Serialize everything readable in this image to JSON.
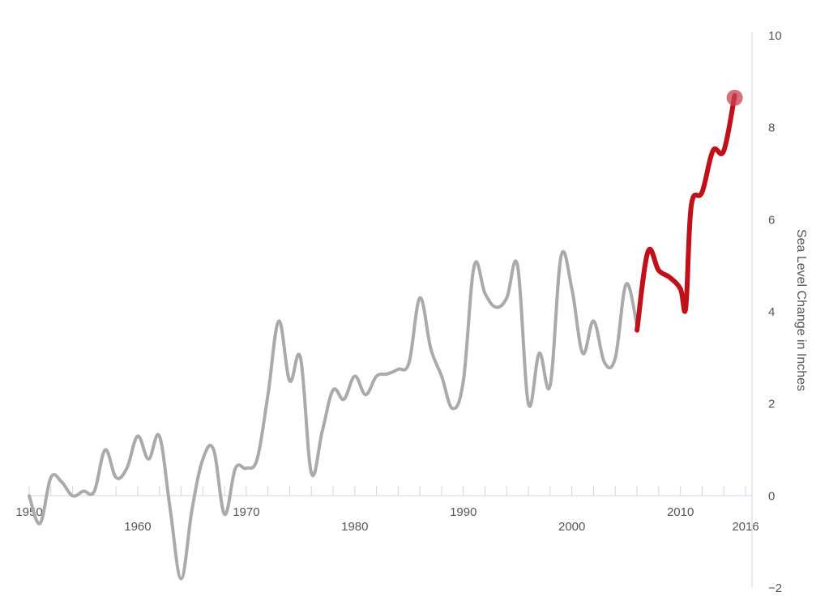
{
  "chart_data": {
    "type": "line",
    "ylabel": "Sea Level Change in Inches",
    "xlim": [
      1950,
      2016
    ],
    "ylim": [
      -2,
      10
    ],
    "x_tick_labels": [
      {
        "value": 1950,
        "label": "1950"
      },
      {
        "value": 1960,
        "label": "1960"
      },
      {
        "value": 1970,
        "label": "1970"
      },
      {
        "value": 1980,
        "label": "1980"
      },
      {
        "value": 1990,
        "label": "1990"
      },
      {
        "value": 2000,
        "label": "2000"
      },
      {
        "value": 2010,
        "label": "2010"
      },
      {
        "value": 2016,
        "label": "2016"
      }
    ],
    "y_tick_labels": [
      {
        "value": -2,
        "label": "−2"
      },
      {
        "value": 0,
        "label": "0"
      },
      {
        "value": 2,
        "label": "2"
      },
      {
        "value": 4,
        "label": "4"
      },
      {
        "value": 6,
        "label": "6"
      },
      {
        "value": 8,
        "label": "8"
      },
      {
        "value": 10,
        "label": "10"
      }
    ],
    "y_axis_position": "right",
    "grid": false,
    "series": [
      {
        "color": "#aaaaaa",
        "points": [
          [
            1950,
            0.0
          ],
          [
            1951,
            -0.6
          ],
          [
            1952,
            0.4
          ],
          [
            1953,
            0.3
          ],
          [
            1954,
            0.0
          ],
          [
            1955,
            0.1
          ],
          [
            1956,
            0.1
          ],
          [
            1957,
            1.0
          ],
          [
            1958,
            0.4
          ],
          [
            1959,
            0.6
          ],
          [
            1960,
            1.3
          ],
          [
            1961,
            0.8
          ],
          [
            1962,
            1.3
          ],
          [
            1963,
            -0.3
          ],
          [
            1964,
            -1.8
          ],
          [
            1965,
            -0.3
          ],
          [
            1966,
            0.8
          ],
          [
            1967,
            1.0
          ],
          [
            1968,
            -0.4
          ],
          [
            1969,
            0.6
          ],
          [
            1970,
            0.6
          ],
          [
            1971,
            0.8
          ],
          [
            1972,
            2.2
          ],
          [
            1973,
            3.8
          ],
          [
            1974,
            2.5
          ],
          [
            1975,
            3.0
          ],
          [
            1976,
            0.5
          ],
          [
            1977,
            1.4
          ],
          [
            1978,
            2.3
          ],
          [
            1979,
            2.1
          ],
          [
            1980,
            2.6
          ],
          [
            1981,
            2.2
          ],
          [
            1982,
            2.6
          ],
          [
            1983,
            2.65
          ],
          [
            1984,
            2.75
          ],
          [
            1985,
            2.9
          ],
          [
            1986,
            4.3
          ],
          [
            1987,
            3.2
          ],
          [
            1988,
            2.6
          ],
          [
            1989,
            1.9
          ],
          [
            1990,
            2.5
          ],
          [
            1991,
            5.0
          ],
          [
            1992,
            4.4
          ],
          [
            1993,
            4.1
          ],
          [
            1994,
            4.3
          ],
          [
            1995,
            5.0
          ],
          [
            1996,
            2.0
          ],
          [
            1997,
            3.1
          ],
          [
            1998,
            2.4
          ],
          [
            1999,
            5.2
          ],
          [
            2000,
            4.5
          ],
          [
            2001,
            3.1
          ],
          [
            2002,
            3.8
          ],
          [
            2003,
            2.9
          ],
          [
            2004,
            3.0
          ],
          [
            2005,
            4.6
          ],
          [
            2006,
            3.7
          ]
        ]
      },
      {
        "color": "#c0101a",
        "points": [
          [
            2006,
            3.6
          ],
          [
            2007,
            5.3
          ],
          [
            2008,
            4.9
          ],
          [
            2009,
            4.75
          ],
          [
            2010,
            4.5
          ],
          [
            2010.5,
            4.1
          ],
          [
            2011,
            6.3
          ],
          [
            2012,
            6.6
          ],
          [
            2013,
            7.5
          ],
          [
            2014,
            7.5
          ],
          [
            2015,
            8.7
          ]
        ]
      }
    ],
    "highlight_point": {
      "x": 2015,
      "y": 8.65,
      "color": "#c8424f"
    },
    "colors": {
      "axis": "#ccd6eb",
      "tick_text": "#555555",
      "historic_line": "#aaaaaa",
      "recent_line": "#c0101a"
    }
  }
}
